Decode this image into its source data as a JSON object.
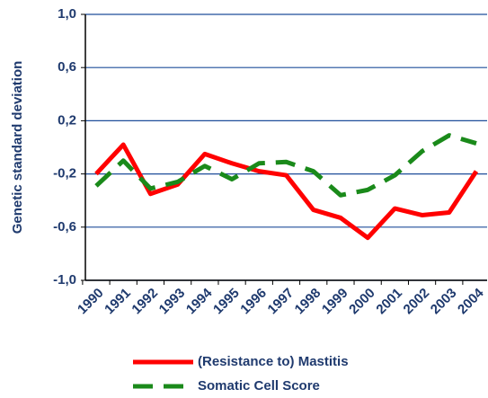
{
  "chart_data": {
    "type": "line",
    "y_label": "Genetic standard deviation",
    "categories": [
      "1990",
      "1991",
      "1992",
      "1993",
      "1994",
      "1995",
      "1996",
      "1997",
      "1998",
      "1999",
      "2000",
      "2001",
      "2002",
      "2003",
      "2004"
    ],
    "series": [
      {
        "name": "(Resistance to) Mastitis",
        "color": "#ff0000",
        "dash": "solid",
        "values": [
          -0.2,
          0.02,
          -0.35,
          -0.28,
          -0.05,
          -0.12,
          -0.18,
          -0.21,
          -0.47,
          -0.53,
          -0.68,
          -0.46,
          -0.51,
          -0.49,
          -0.18
        ]
      },
      {
        "name": "Somatic Cell Score",
        "color": "#1a8a1a",
        "dash": "dashed",
        "values": [
          -0.29,
          -0.1,
          -0.31,
          -0.26,
          -0.14,
          -0.24,
          -0.12,
          -0.11,
          -0.18,
          -0.36,
          -0.32,
          -0.21,
          -0.03,
          0.09,
          0.03
        ]
      }
    ],
    "ylim": [
      -1.0,
      1.0
    ],
    "yticks": [
      {
        "value": -1.0,
        "label": "-1,0"
      },
      {
        "value": -0.6,
        "label": "-0,6"
      },
      {
        "value": -0.2,
        "label": "-0,2"
      },
      {
        "value": 0.2,
        "label": "0,2"
      },
      {
        "value": 0.6,
        "label": "0,6"
      },
      {
        "value": 1.0,
        "label": "1,0"
      }
    ],
    "grid": true,
    "grid_color": "#1f4e9a",
    "legend": "bottom"
  }
}
